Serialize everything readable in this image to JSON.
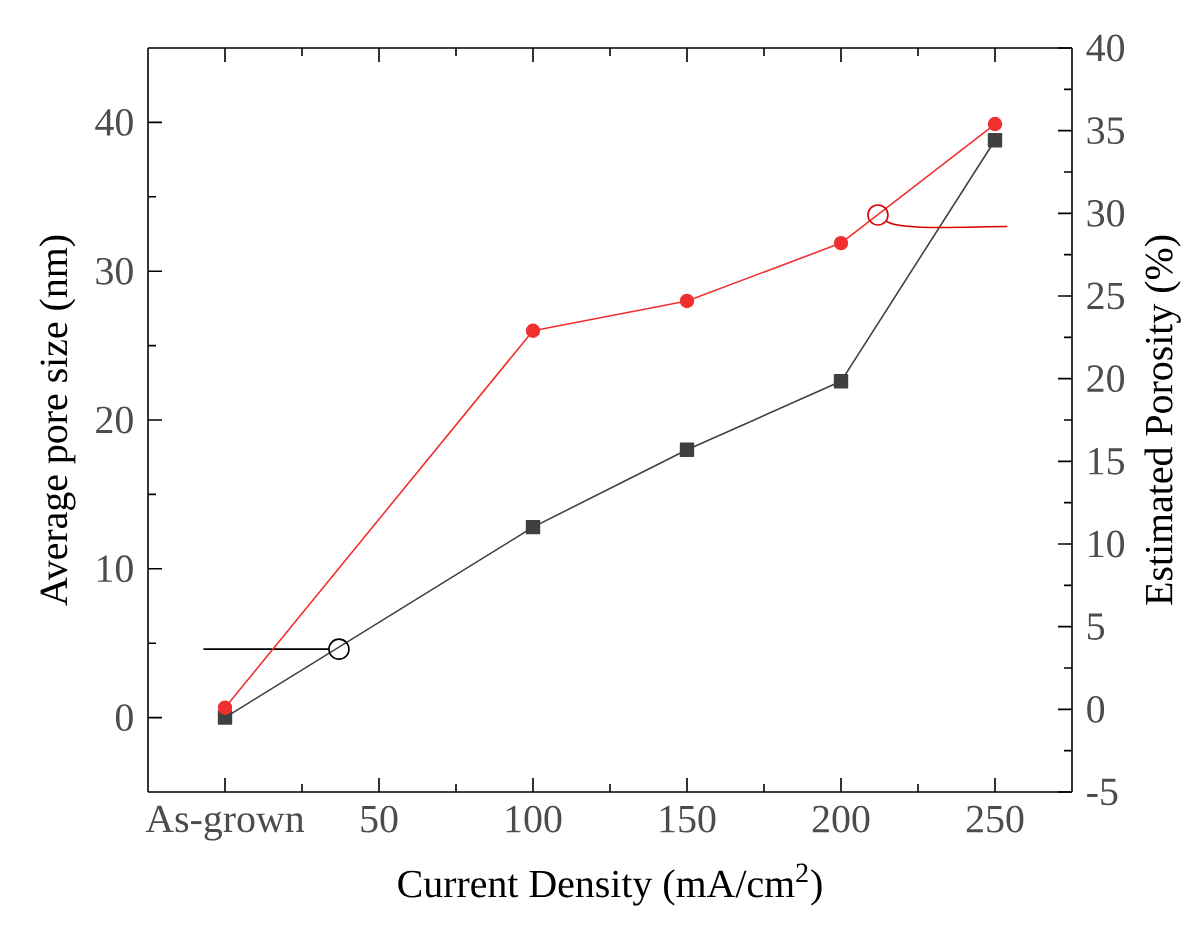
{
  "chart_data": {
    "type": "line",
    "xlabel": "Current Density (mA/cm$^{2}$)",
    "ylabel": "Average pore size (nm)",
    "y2label": "Estimated Porosity (%)",
    "x": [
      0,
      100,
      150,
      200,
      250
    ],
    "series": [
      {
        "color": "#404040",
        "marker": "square",
        "values": [
          0,
          12.8,
          18.0,
          22.6,
          38.8
        ]
      },
      {
        "color": "#f03030",
        "marker": "circle",
        "axis": "y2",
        "values": [
          0.1,
          22.9,
          24.7,
          28.2,
          35.4
        ]
      }
    ],
    "xlim": [
      -25,
      275
    ],
    "xticks": [
      {
        "value": 0,
        "label": "As-grown"
      },
      50,
      100,
      150,
      200,
      250
    ],
    "ylim": [
      -5,
      45
    ],
    "yticks": [
      0,
      10,
      20,
      30,
      40
    ],
    "y2lim": [
      -5,
      40
    ],
    "y2ticks": [
      -5,
      0,
      5,
      10,
      15,
      20,
      25,
      30,
      35,
      40
    ],
    "grid": false,
    "legend": false,
    "line_style": "solid"
  }
}
